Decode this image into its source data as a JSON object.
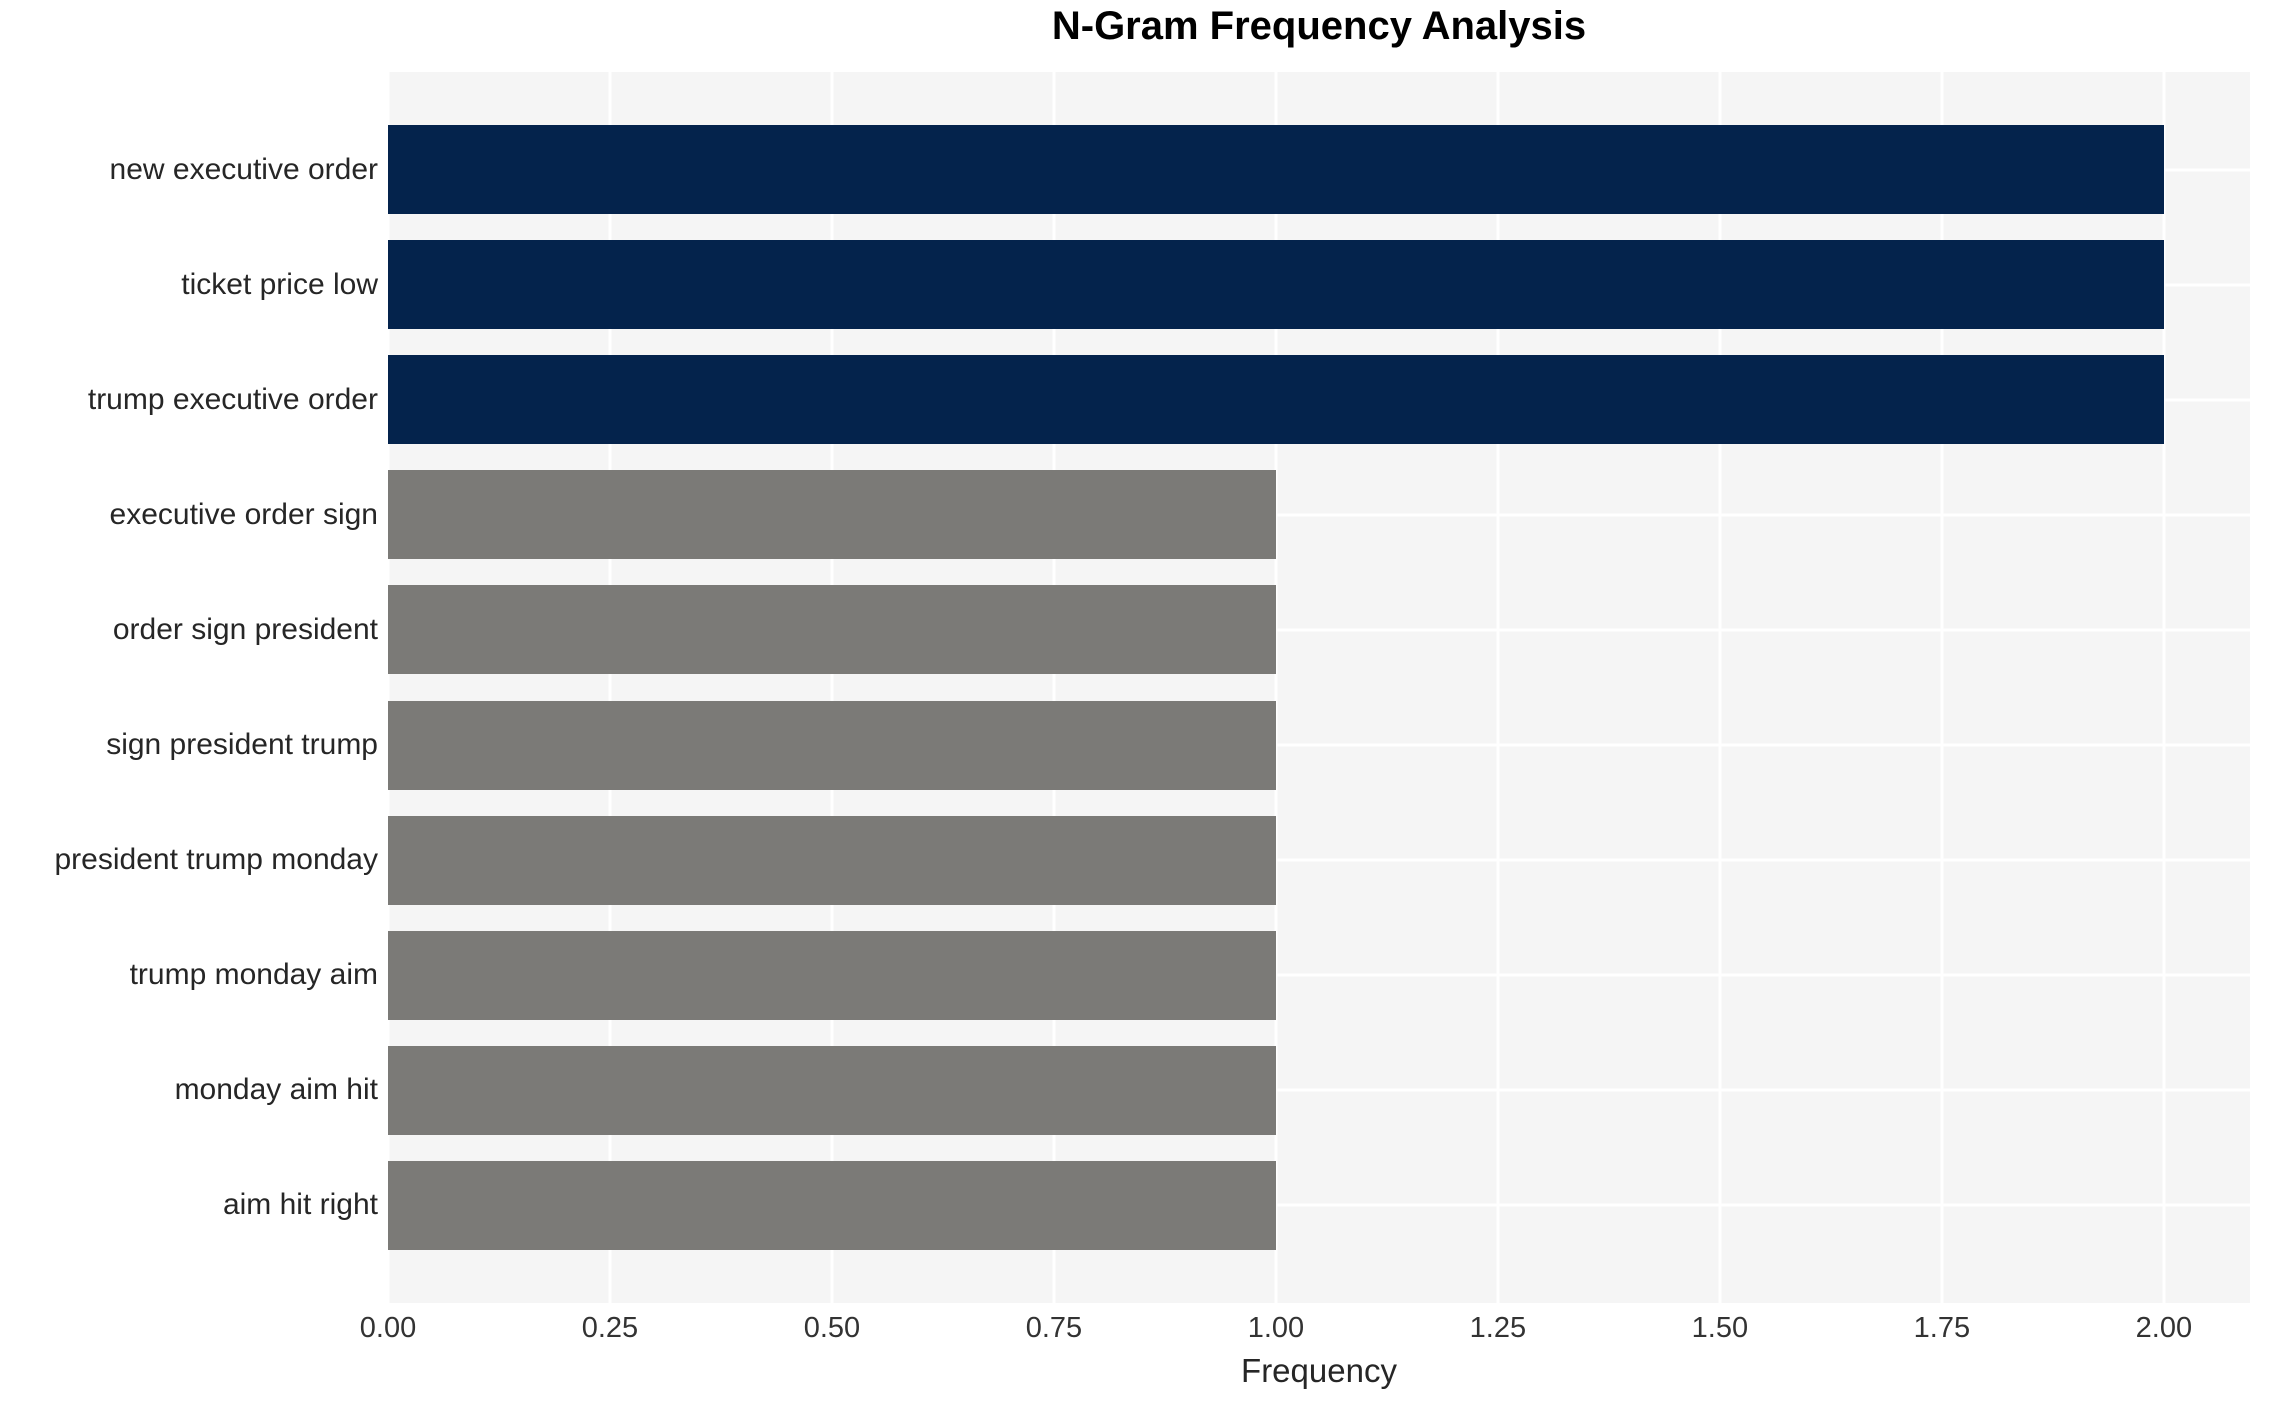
{
  "chart_data": {
    "type": "bar",
    "orientation": "horizontal",
    "title": "N-Gram Frequency Analysis",
    "xlabel": "Frequency",
    "ylabel": "",
    "categories": [
      "new executive order",
      "ticket price low",
      "trump executive order",
      "executive order sign",
      "order sign president",
      "sign president trump",
      "president trump monday",
      "trump monday aim",
      "monday aim hit",
      "aim hit right"
    ],
    "values": [
      2,
      2,
      2,
      1,
      1,
      1,
      1,
      1,
      1,
      1
    ],
    "bar_colors": [
      "#04234c",
      "#04234c",
      "#04234c",
      "#7b7a77",
      "#7b7a77",
      "#7b7a77",
      "#7b7a77",
      "#7b7a77",
      "#7b7a77",
      "#7b7a77"
    ],
    "xlim": [
      0,
      2.097
    ],
    "xticks": [
      0.0,
      0.25,
      0.5,
      0.75,
      1.0,
      1.25,
      1.5,
      1.75,
      2.0
    ],
    "xtick_labels": [
      "0.00",
      "0.25",
      "0.50",
      "0.75",
      "1.00",
      "1.25",
      "1.50",
      "1.75",
      "2.00"
    ],
    "grid": true,
    "legend": "none",
    "colors": {
      "high_freq_bar": "#04234c",
      "low_freq_bar": "#7b7a77",
      "plot_background": "#f5f5f5",
      "gridline": "#ffffff",
      "figure_background": "#ffffff",
      "text": "#262626"
    }
  }
}
